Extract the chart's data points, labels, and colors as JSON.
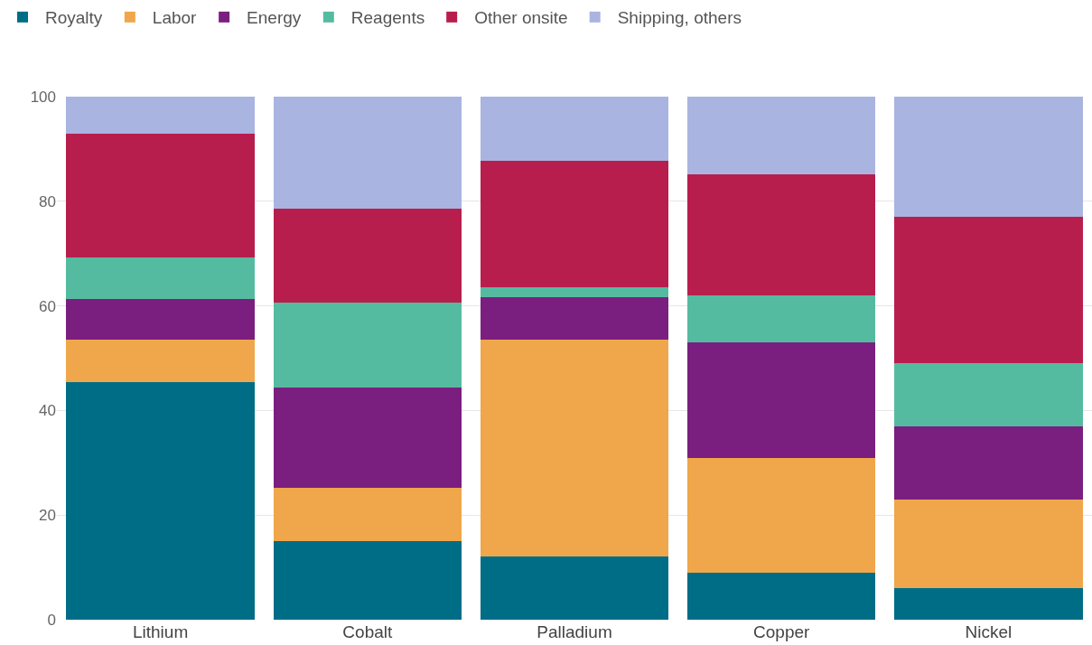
{
  "chart_data": {
    "type": "bar",
    "stacked": true,
    "categories": [
      "Lithium",
      "Cobalt",
      "Palladium",
      "Copper",
      "Nickel"
    ],
    "series": [
      {
        "name": "Royalty",
        "color": "#006d87",
        "values": [
          45.5,
          15.0,
          12.1,
          9.0,
          6.0
        ]
      },
      {
        "name": "Labor",
        "color": "#f0a64a",
        "values": [
          8.0,
          10.3,
          41.4,
          22.0,
          17.0
        ]
      },
      {
        "name": "Energy",
        "color": "#7a1f7f",
        "values": [
          7.8,
          19.1,
          8.2,
          22.0,
          14.0
        ]
      },
      {
        "name": "Reagents",
        "color": "#55bba0",
        "values": [
          8.0,
          16.3,
          1.9,
          9.0,
          12.0
        ]
      },
      {
        "name": "Other onsite",
        "color": "#b81e4d",
        "values": [
          23.7,
          17.9,
          24.2,
          23.2,
          28.0
        ]
      },
      {
        "name": "Shipping, others",
        "color": "#aab4e0",
        "values": [
          7.0,
          21.4,
          12.2,
          14.8,
          23.0
        ]
      }
    ],
    "ylim": [
      0,
      100
    ],
    "yticks": [
      0,
      20,
      40,
      60,
      80,
      100
    ],
    "grid": "y",
    "legend": "top left"
  }
}
